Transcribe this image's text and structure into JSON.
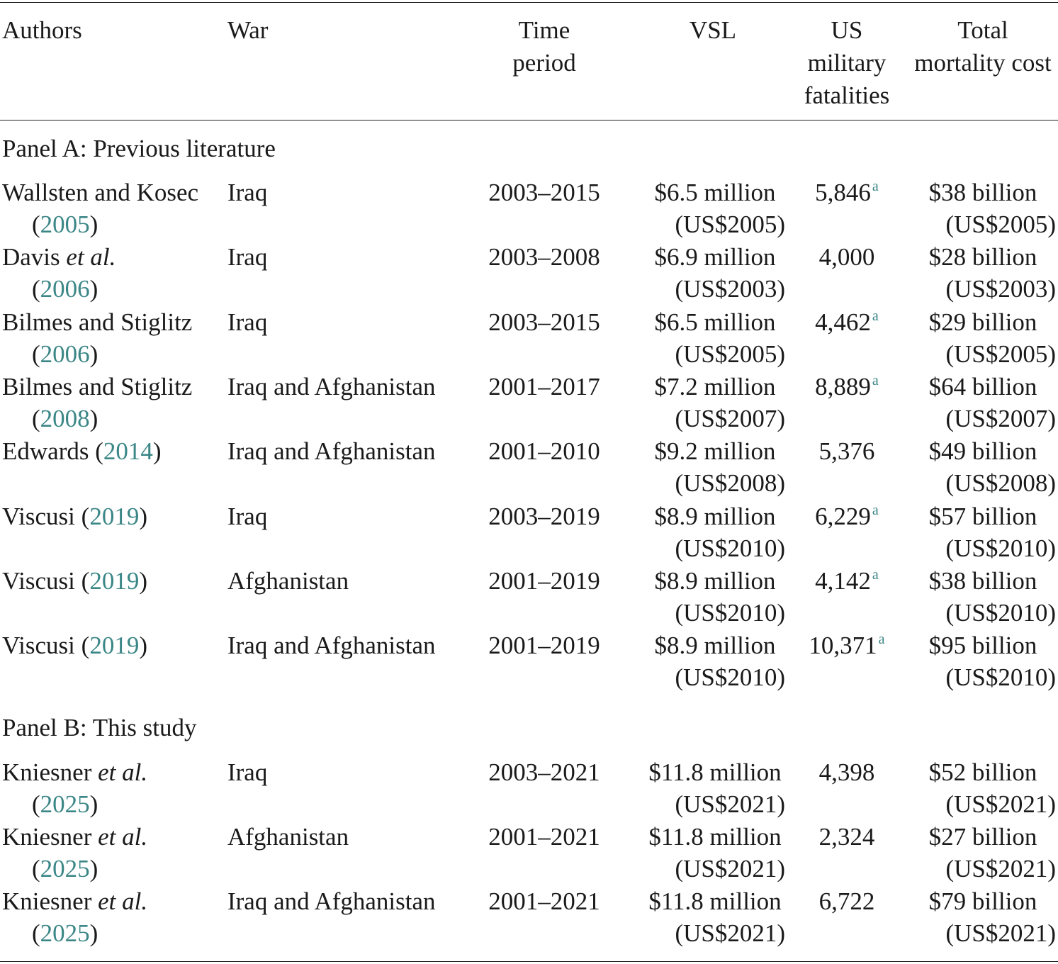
{
  "headers": {
    "authors": "Authors",
    "war": "War",
    "time_period": [
      "Time",
      "period"
    ],
    "vsl": "VSL",
    "fatalities": [
      "US",
      "military",
      "fatalities"
    ],
    "total_cost": [
      "Total",
      "mortality cost"
    ]
  },
  "panel_a": {
    "title": "Panel A: Previous literature"
  },
  "panel_b": {
    "title": "Panel B: This study"
  },
  "rows": [
    {
      "author_name": "Wallsten and Kosec",
      "etal": "",
      "year": "2005",
      "war": "Iraq",
      "period": "2003–2015",
      "vsl": "$6.5 million",
      "vsl_base": "(US$2005)",
      "fatalities": "5,846",
      "note": "a",
      "cost": "$38 billion",
      "cost_base": "(US$2005)"
    },
    {
      "author_name": "Davis",
      "etal": "et al.",
      "year": "2006",
      "war": "Iraq",
      "period": "2003–2008",
      "vsl": "$6.9 million",
      "vsl_base": "(US$2003)",
      "fatalities": "4,000",
      "note": "",
      "cost": "$28 billion",
      "cost_base": "(US$2003)"
    },
    {
      "author_name": "Bilmes and Stiglitz",
      "etal": "",
      "year": "2006",
      "war": "Iraq",
      "period": "2003–2015",
      "vsl": "$6.5 million",
      "vsl_base": "(US$2005)",
      "fatalities": "4,462",
      "note": "a",
      "cost": "$29 billion",
      "cost_base": "(US$2005)"
    },
    {
      "author_name": "Bilmes and Stiglitz",
      "etal": "",
      "year": "2008",
      "war": "Iraq and Afghanistan",
      "period": "2001–2017",
      "vsl": "$7.2 million",
      "vsl_base": "(US$2007)",
      "fatalities": "8,889",
      "note": "a",
      "cost": "$64 billion",
      "cost_base": "(US$2007)"
    },
    {
      "author_name": "Edwards",
      "etal": "",
      "year": "2014",
      "war": "Iraq and Afghanistan",
      "period": "2001–2010",
      "vsl": "$9.2 million",
      "vsl_base": "(US$2008)",
      "fatalities": "5,376",
      "note": "",
      "cost": "$49 billion",
      "cost_base": "(US$2008)"
    },
    {
      "author_name": "Viscusi",
      "etal": "",
      "year": "2019",
      "war": "Iraq",
      "period": "2003–2019",
      "vsl": "$8.9 million",
      "vsl_base": "(US$2010)",
      "fatalities": "6,229",
      "note": "a",
      "cost": "$57 billion",
      "cost_base": "(US$2010)"
    },
    {
      "author_name": "Viscusi",
      "etal": "",
      "year": "2019",
      "war": "Afghanistan",
      "period": "2001–2019",
      "vsl": "$8.9 million",
      "vsl_base": "(US$2010)",
      "fatalities": "4,142",
      "note": "a",
      "cost": "$38 billion",
      "cost_base": "(US$2010)"
    },
    {
      "author_name": "Viscusi",
      "etal": "",
      "year": "2019",
      "war": "Iraq and Afghanistan",
      "period": "2001–2019",
      "vsl": "$8.9 million",
      "vsl_base": "(US$2010)",
      "fatalities": "10,371",
      "note": "a",
      "cost": "$95 billion",
      "cost_base": "(US$2010)"
    },
    {
      "author_name": "Kniesner",
      "etal": "et al.",
      "year": "2025",
      "war": "Iraq",
      "period": "2003–2021",
      "vsl": "$11.8 million",
      "vsl_base": "(US$2021)",
      "fatalities": "4,398",
      "note": "",
      "cost": "$52 billion",
      "cost_base": "(US$2021)"
    },
    {
      "author_name": "Kniesner",
      "etal": "et al.",
      "year": "2025",
      "war": "Afghanistan",
      "period": "2001–2021",
      "vsl": "$11.8 million",
      "vsl_base": "(US$2021)",
      "fatalities": "2,324",
      "note": "",
      "cost": "$27 billion",
      "cost_base": "(US$2021)"
    },
    {
      "author_name": "Kniesner",
      "etal": "et al.",
      "year": "2025",
      "war": "Iraq and Afghanistan",
      "period": "2001–2021",
      "vsl": "$11.8 million",
      "vsl_base": "(US$2021)",
      "fatalities": "6,722",
      "note": "",
      "cost": "$79 billion",
      "cost_base": "(US$2021)"
    }
  ]
}
